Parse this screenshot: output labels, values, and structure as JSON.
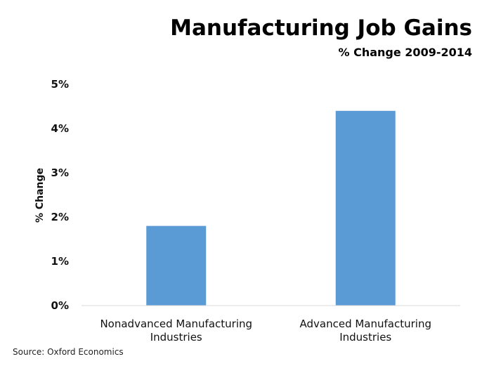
{
  "chart_data": {
    "type": "bar",
    "title": "Manufacturing Job Gains",
    "subtitle": "% Change 2009-2014",
    "xlabel": "",
    "ylabel": "% Change",
    "categories": [
      [
        "Nonadvanced Manufacturing",
        "Industries"
      ],
      [
        "Advanced Manufacturing",
        "Industries"
      ]
    ],
    "values": [
      1.8,
      4.4
    ],
    "ylim": [
      0,
      5
    ],
    "yticks": [
      0,
      1,
      2,
      3,
      4,
      5
    ],
    "ytick_labels": [
      "0%",
      "1%",
      "2%",
      "3%",
      "4%",
      "5%"
    ],
    "bar_color": "#5b9bd5",
    "grid": false,
    "legend": "none"
  },
  "source": "Source: Oxford Economics"
}
